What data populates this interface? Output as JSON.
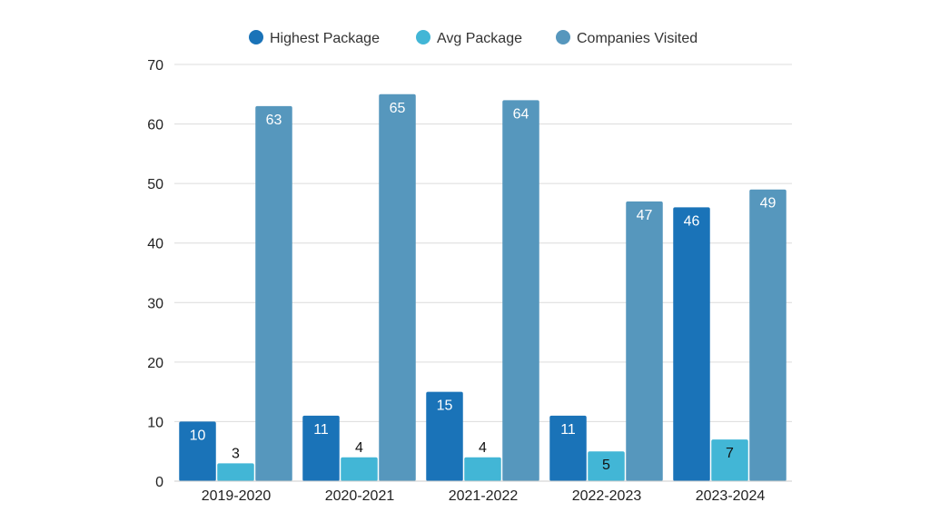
{
  "chart_data": {
    "type": "bar",
    "title": "",
    "xlabel": "",
    "ylabel": "",
    "categories": [
      "2019-2020",
      "2020-2021",
      "2021-2022",
      "2022-2023",
      "2023-2024"
    ],
    "series": [
      {
        "name": "Highest Package",
        "values": [
          10,
          11,
          15,
          11,
          46
        ],
        "color": "#1a73b8",
        "label_color": "#ffffff"
      },
      {
        "name": "Avg Package",
        "values": [
          3,
          4,
          4,
          5,
          7
        ],
        "color": "#42b6d6",
        "label_color": "#111111"
      },
      {
        "name": "Companies Visited",
        "values": [
          63,
          65,
          64,
          47,
          49
        ],
        "color": "#5697bd",
        "label_color": "#ffffff"
      }
    ],
    "ylim": [
      0,
      70
    ],
    "yticks": [
      0,
      10,
      20,
      30,
      40,
      50,
      60,
      70
    ],
    "grid": true,
    "legend_position": "top-center"
  }
}
